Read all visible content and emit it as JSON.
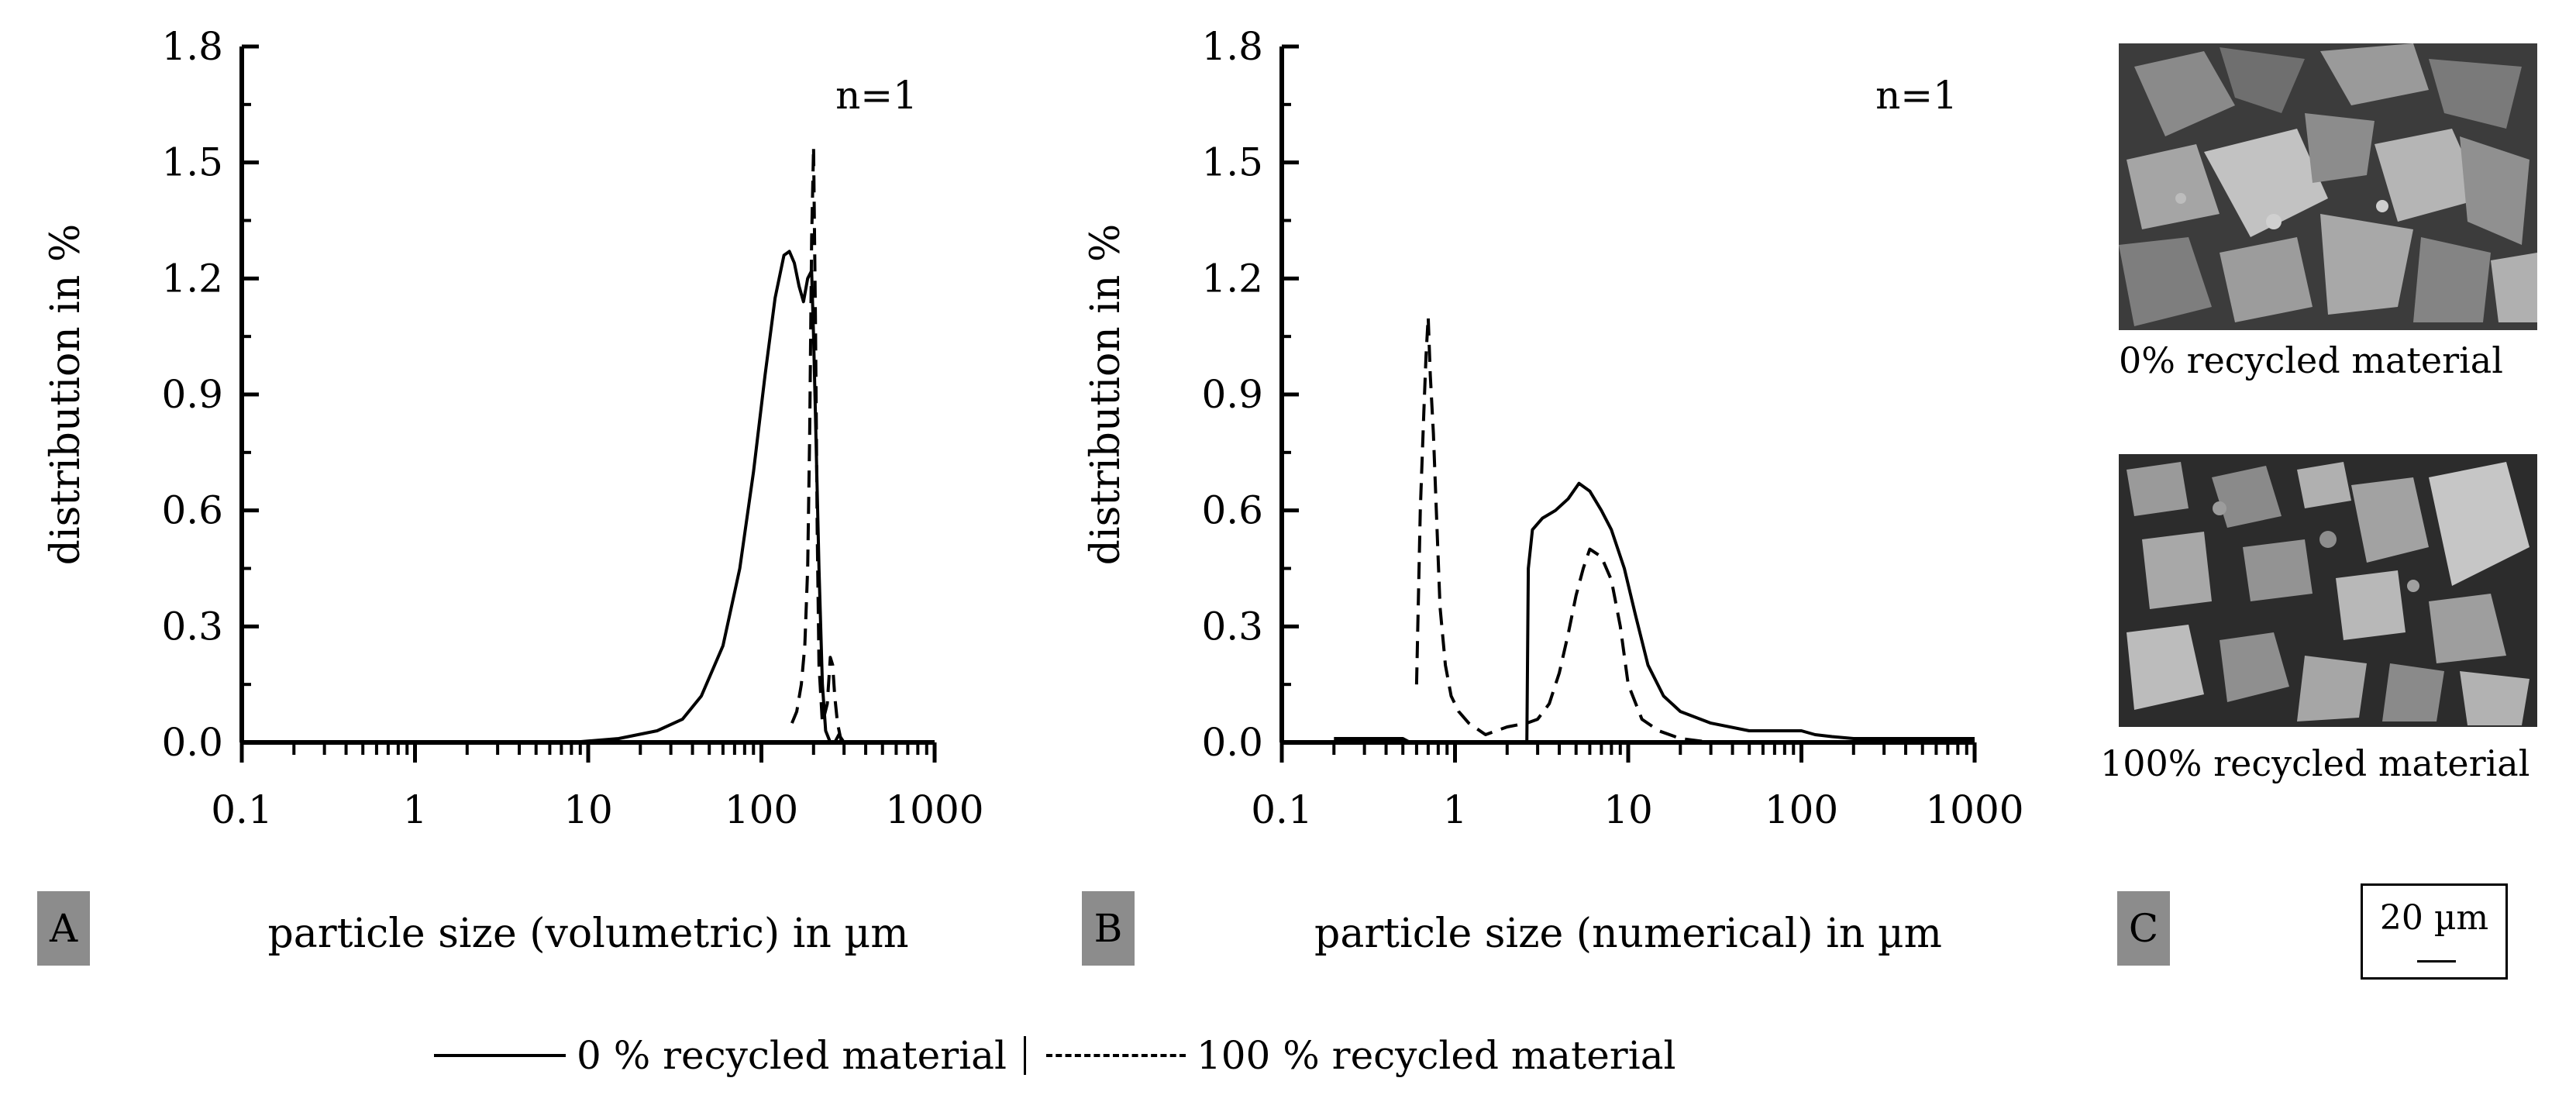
{
  "chart_data": [
    {
      "type": "line",
      "panel": "A",
      "xscale": "log",
      "xlim": [
        0.1,
        1000
      ],
      "ylim": [
        0,
        1.8
      ],
      "xticks": [
        0.1,
        1,
        10,
        100,
        1000
      ],
      "xtick_labels": [
        "0.1",
        "1",
        "10",
        "100",
        "1000"
      ],
      "yticks": [
        0,
        0.3,
        0.6,
        0.9,
        1.2,
        1.5,
        1.8
      ],
      "ytick_labels": [
        "0.0",
        "0.3",
        "0.6",
        "0.9",
        "1.2",
        "1.5",
        "1.8"
      ],
      "xlabel": "particle size (volumetric) in µm",
      "ylabel": "distribution in %",
      "annotation": "n=1",
      "series": [
        {
          "name": "0 % recycled material",
          "style": "solid",
          "x": [
            8,
            15,
            25,
            35,
            45,
            60,
            75,
            90,
            105,
            120,
            135,
            145,
            155,
            165,
            175,
            185,
            195,
            200,
            205,
            215,
            225,
            235,
            250,
            265,
            280,
            300,
            320
          ],
          "y": [
            0.0,
            0.01,
            0.03,
            0.06,
            0.12,
            0.25,
            0.45,
            0.7,
            0.95,
            1.15,
            1.26,
            1.27,
            1.24,
            1.18,
            1.14,
            1.2,
            1.22,
            1.05,
            0.85,
            0.45,
            0.15,
            0.03,
            0.0,
            0.0,
            0.02,
            0.0,
            0.0
          ]
        },
        {
          "name": "100 % recycled material",
          "style": "dashed",
          "x": [
            150,
            160,
            170,
            178,
            185,
            190,
            195,
            200,
            205,
            210,
            215,
            225,
            240,
            250,
            258,
            265,
            275,
            290
          ],
          "y": [
            0.05,
            0.08,
            0.15,
            0.25,
            0.45,
            0.8,
            1.3,
            1.54,
            1.1,
            0.55,
            0.2,
            0.05,
            0.1,
            0.22,
            0.2,
            0.12,
            0.05,
            0.0
          ]
        }
      ]
    },
    {
      "type": "line",
      "panel": "B",
      "xscale": "log",
      "xlim": [
        0.1,
        1000
      ],
      "ylim": [
        0,
        1.8
      ],
      "xticks": [
        0.1,
        1,
        10,
        100,
        1000
      ],
      "xtick_labels": [
        "0.1",
        "1",
        "10",
        "100",
        "1000"
      ],
      "yticks": [
        0,
        0.3,
        0.6,
        0.9,
        1.2,
        1.5,
        1.8
      ],
      "ytick_labels": [
        "0.0",
        "0.3",
        "0.6",
        "0.9",
        "1.2",
        "1.5",
        "1.8"
      ],
      "xlabel": "particle size (numerical) in µm",
      "ylabel": "distribution in %",
      "annotation": "n=1",
      "series": [
        {
          "name": "0 % recycled material",
          "style": "solid",
          "x": [
            0.2,
            0.5,
            0.55,
            2.6,
            2.65,
            2.8,
            3.2,
            3.8,
            4.5,
            5.2,
            6,
            7,
            8,
            9.5,
            11,
            13,
            16,
            20,
            30,
            50,
            80,
            100,
            120,
            150,
            200,
            300,
            500,
            800,
            1000
          ],
          "y": [
            0.01,
            0.01,
            0.0,
            0.0,
            0.45,
            0.55,
            0.58,
            0.6,
            0.63,
            0.67,
            0.65,
            0.6,
            0.55,
            0.45,
            0.33,
            0.2,
            0.12,
            0.08,
            0.05,
            0.03,
            0.03,
            0.03,
            0.02,
            0.015,
            0.01,
            0.01,
            0.01,
            0.01,
            0.01
          ]
        },
        {
          "name": "100 % recycled material",
          "style": "dashed",
          "x": [
            0.6,
            0.63,
            0.66,
            0.68,
            0.7,
            0.72,
            0.75,
            0.78,
            0.82,
            0.88,
            0.95,
            1.05,
            1.2,
            1.5,
            2,
            2.6,
            3,
            3.5,
            4,
            4.5,
            5,
            5.5,
            6,
            7,
            8,
            9,
            10,
            12,
            15,
            20,
            30
          ],
          "y": [
            0.15,
            0.6,
            0.85,
            1.0,
            1.1,
            0.95,
            0.8,
            0.6,
            0.35,
            0.2,
            0.12,
            0.08,
            0.05,
            0.02,
            0.04,
            0.05,
            0.06,
            0.1,
            0.18,
            0.28,
            0.38,
            0.45,
            0.5,
            0.48,
            0.42,
            0.3,
            0.15,
            0.06,
            0.03,
            0.01,
            0.0
          ]
        }
      ]
    }
  ],
  "panels": {
    "a_label": "A",
    "b_label": "B",
    "c_label": "C"
  },
  "images": {
    "top_caption": "0% recycled material",
    "bottom_caption": "100% recycled material",
    "scale_bar": "20 µm"
  },
  "legend": {
    "solid_label": "0 % recycled material",
    "dashed_label": "100 % recycled material"
  }
}
